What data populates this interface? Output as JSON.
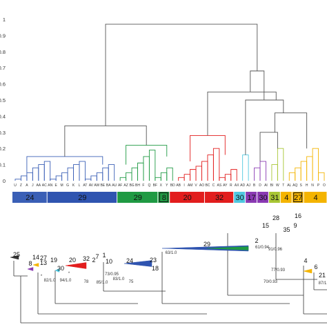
{
  "chart_data": [
    {
      "type": "dendrogram",
      "ylim": [
        0,
        1
      ],
      "y_ticks": [
        {
          "value": 0,
          "label": "0"
        },
        {
          "value": 0.1,
          "label": "0.1"
        },
        {
          "value": 0.2,
          "label": "0.2"
        },
        {
          "value": 0.3,
          "label": "0.3"
        },
        {
          "value": 0.4,
          "label": "0.4"
        },
        {
          "value": 0.5,
          "label": "0.5"
        },
        {
          "value": 0.6,
          "label": "0.6"
        },
        {
          "value": 0.7,
          "label": "0.7"
        },
        {
          "value": 0.8,
          "label": "0.8"
        },
        {
          "value": 0.9,
          "label": "0.9"
        },
        {
          "value": 1,
          "label": "1"
        }
      ],
      "leaf_labels": [
        "U",
        "Z",
        "A",
        "J",
        "AA",
        "AC",
        "AN",
        "E",
        "M",
        "G",
        "K",
        "L",
        "AT",
        "AV",
        "AW",
        "BE",
        "BA",
        "AU",
        "AF",
        "AZ",
        "BG",
        "BH",
        "F",
        "Q",
        "BF",
        "X",
        "Y",
        "BD",
        "AB",
        "I",
        "AM",
        "V",
        "AO",
        "BC",
        "C",
        "AS",
        "AY",
        "R",
        "AX",
        "AD",
        "AJ",
        "B",
        "D",
        "AI",
        "BI",
        "W",
        "T",
        "AL",
        "AQ",
        "S",
        "H",
        "N",
        "P",
        "O"
      ],
      "merge_heights": {
        "root": 0.97,
        "left_cluster": 0.34,
        "right_cluster": 0.82,
        "right_sub": 0.55,
        "blue_group": 0.15,
        "green_group": 0.22,
        "red_group": 0.28,
        "purple_orange_group": 0.42
      },
      "groups": [
        {
          "label": "24",
          "color": "#3a5fb6",
          "text_color": "#111111"
        },
        {
          "label": "29",
          "color": "#2f54b0",
          "text_color": "#111111"
        },
        {
          "label": "29",
          "color": "#1f9a43",
          "text_color": "#111111"
        },
        {
          "label": "8",
          "color": "#1f9a43",
          "text_color": "#111111",
          "boxed": true
        },
        {
          "label": "20",
          "color": "#e21d1d",
          "text_color": "#111111"
        },
        {
          "label": "32",
          "color": "#e21d1d",
          "text_color": "#111111"
        },
        {
          "label": "30",
          "color": "#50c8e0",
          "text_color": "#111111"
        },
        {
          "label": "17",
          "color": "#8a3ab3",
          "text_color": "#111111"
        },
        {
          "label": "30",
          "color": "#8a3ab3",
          "text_color": "#111111"
        },
        {
          "label": "31",
          "color": "#a8c634",
          "text_color": "#111111"
        },
        {
          "label": "4",
          "color": "#f4b400",
          "text_color": "#111111"
        },
        {
          "label": "27",
          "color": "#f4b400",
          "text_color": "#111111",
          "boxed": true
        },
        {
          "label": "4",
          "color": "#f4b400",
          "text_color": "#111111"
        }
      ]
    },
    {
      "type": "phylogenetic_tree",
      "clade_labels": [
        "25",
        "8",
        "14",
        "27",
        "13",
        "19",
        "30",
        "20",
        "32",
        "2",
        "7",
        "1",
        "10",
        "24",
        "23",
        "18",
        "29",
        "2",
        "15",
        "28",
        "3",
        "5",
        "9",
        "16",
        "4",
        "6",
        "21"
      ],
      "support_values": [
        "*",
        "*",
        "82/1.0",
        "94/1.0",
        "78",
        "85/1.0",
        "83/1.0",
        "73/0.95",
        "75",
        "63/1.0",
        "61/0.94",
        "91/0.96",
        "77/0.93",
        "70/0.93",
        "87/1.0"
      ]
    }
  ]
}
